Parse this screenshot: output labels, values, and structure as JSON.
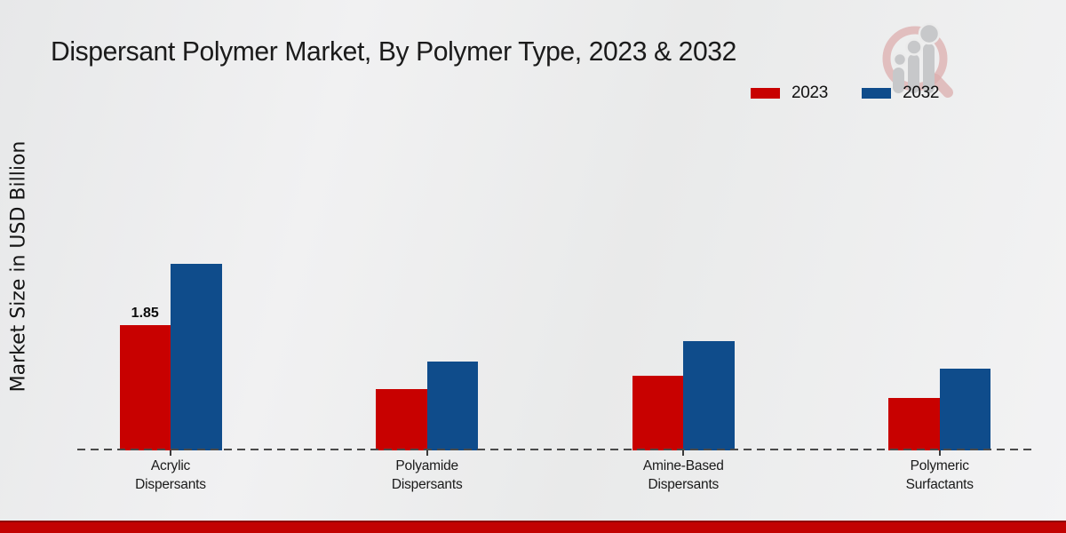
{
  "page": {
    "background_top": "#e7e8e9",
    "background_bottom": "#f3f3f4",
    "footer_bar_color": "#c20202"
  },
  "chart_data": {
    "type": "bar",
    "title": "Dispersant Polymer Market, By Polymer Type, 2023 & 2032",
    "ylabel": "Market Size in USD Billion",
    "xlabel": "",
    "categories": [
      "Acrylic Dispersants",
      "Polyamide Dispersants",
      "Amine-Based Dispersants",
      "Polymeric Surfactants"
    ],
    "series": [
      {
        "name": "2023",
        "color": "#c80100",
        "values": [
          1.85,
          0.9,
          1.1,
          0.78
        ]
      },
      {
        "name": "2032",
        "color": "#0f4c8b",
        "values": [
          2.76,
          1.31,
          1.61,
          1.21
        ]
      }
    ],
    "ylim": [
      0,
      3.2
    ],
    "grid": false,
    "legend_position": "top-right",
    "baseline_style": "dashed",
    "annotations": [
      {
        "series": "2023",
        "category": "Acrylic Dispersants",
        "text": "1.85"
      }
    ]
  },
  "legend": {
    "items": [
      {
        "label": "2023",
        "color": "#c80100"
      },
      {
        "label": "2032",
        "color": "#0f4c8b"
      }
    ]
  },
  "watermark": {
    "icon": "magnifier-bar-chart-logo",
    "ring_color": "#dcaeae",
    "bars_color": "#c7c8ca"
  }
}
